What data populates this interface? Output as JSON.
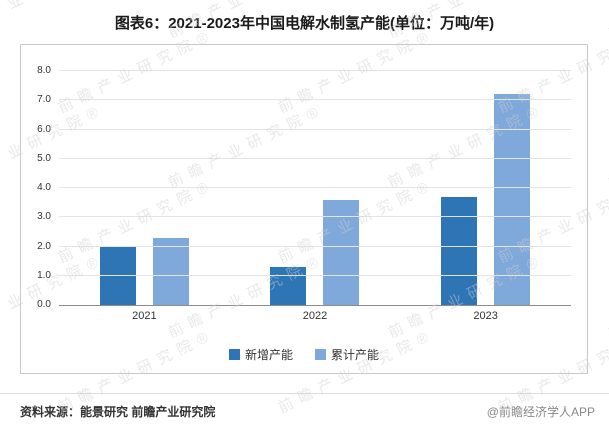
{
  "page": {
    "title": "图表6：2021-2023年中国电解水制氢产能(单位：万吨/年)",
    "watermark_text": "前瞻产业研究院",
    "footer": {
      "source": "资料来源：能景研究 前瞻产业研究院",
      "credit": "@前瞻经济学人APP"
    }
  },
  "chart_data": {
    "type": "bar",
    "title": "图表6：2021-2023年中国电解水制氢产能(单位：万吨/年)",
    "unit": "万吨/年",
    "categories": [
      "2021",
      "2022",
      "2023"
    ],
    "series": [
      {
        "name": "新增产能",
        "color": "#2E75B6",
        "values": [
          2.0,
          1.3,
          3.7
        ]
      },
      {
        "name": "累计产能",
        "color": "#7FA8DB",
        "values": [
          2.3,
          3.6,
          7.2
        ]
      }
    ],
    "ylim": [
      0,
      8
    ],
    "ytick_step": 1,
    "ytick_decimals": 1,
    "grid": true,
    "legend_position": "bottom"
  }
}
